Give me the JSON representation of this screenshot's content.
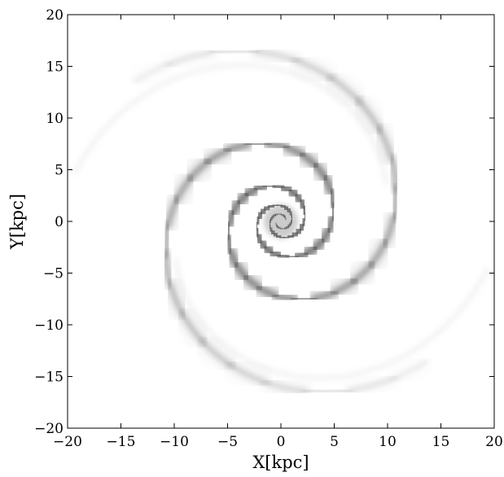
{
  "chart_data": {
    "type": "heatmap",
    "title": "",
    "xlabel": "X[kpc]",
    "ylabel": "Y[kpc]",
    "xlim": [
      -20,
      20
    ],
    "ylim": [
      -20,
      20
    ],
    "xticks": [
      -20,
      -15,
      -10,
      -5,
      0,
      5,
      10,
      15,
      20
    ],
    "yticks": [
      -20,
      -15,
      -10,
      -5,
      0,
      5,
      10,
      15,
      20
    ],
    "xtick_labels": [
      "−20",
      "−15",
      "−10",
      "−5",
      "0",
      "5",
      "10",
      "15",
      "20"
    ],
    "ytick_labels": [
      "−20",
      "−15",
      "−10",
      "−5",
      "0",
      "5",
      "10",
      "15",
      "20"
    ],
    "grid": false,
    "colormap": "grayscale (white = low surface density, dark gray = high)",
    "description_data": {
      "structure": "two-armed logarithmic spiral",
      "center_kpc": [
        0,
        0
      ],
      "arm_pitch_angle_deg": 14,
      "arm_extent_kpc": [
        0.5,
        19
      ],
      "arms": [
        {
          "start_angle_deg": 0,
          "inner_radius_kpc": 0.5,
          "outer_radius_kpc": 19
        },
        {
          "start_angle_deg": 180,
          "inner_radius_kpc": 0.5,
          "outer_radius_kpc": 19
        }
      ],
      "disk_radius_kpc": 19
    }
  }
}
